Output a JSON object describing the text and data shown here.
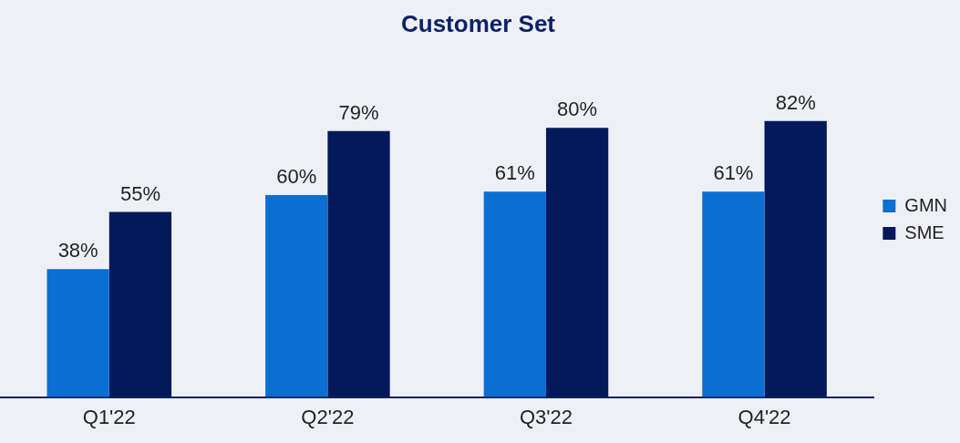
{
  "chart_data": {
    "type": "bar",
    "title": "Customer Set",
    "categories": [
      "Q1'22",
      "Q2'22",
      "Q3'22",
      "Q4'22"
    ],
    "series": [
      {
        "name": "GMN",
        "color": "#0a6fd0",
        "values": [
          38,
          60,
          61,
          61
        ],
        "value_labels": [
          "38%",
          "60%",
          "61%",
          "61%"
        ]
      },
      {
        "name": "SME",
        "color": "#03195a",
        "values": [
          55,
          79,
          80,
          82
        ],
        "value_labels": [
          "55%",
          "79%",
          "80%",
          "82%"
        ]
      }
    ],
    "legend": "right",
    "grid": false
  }
}
